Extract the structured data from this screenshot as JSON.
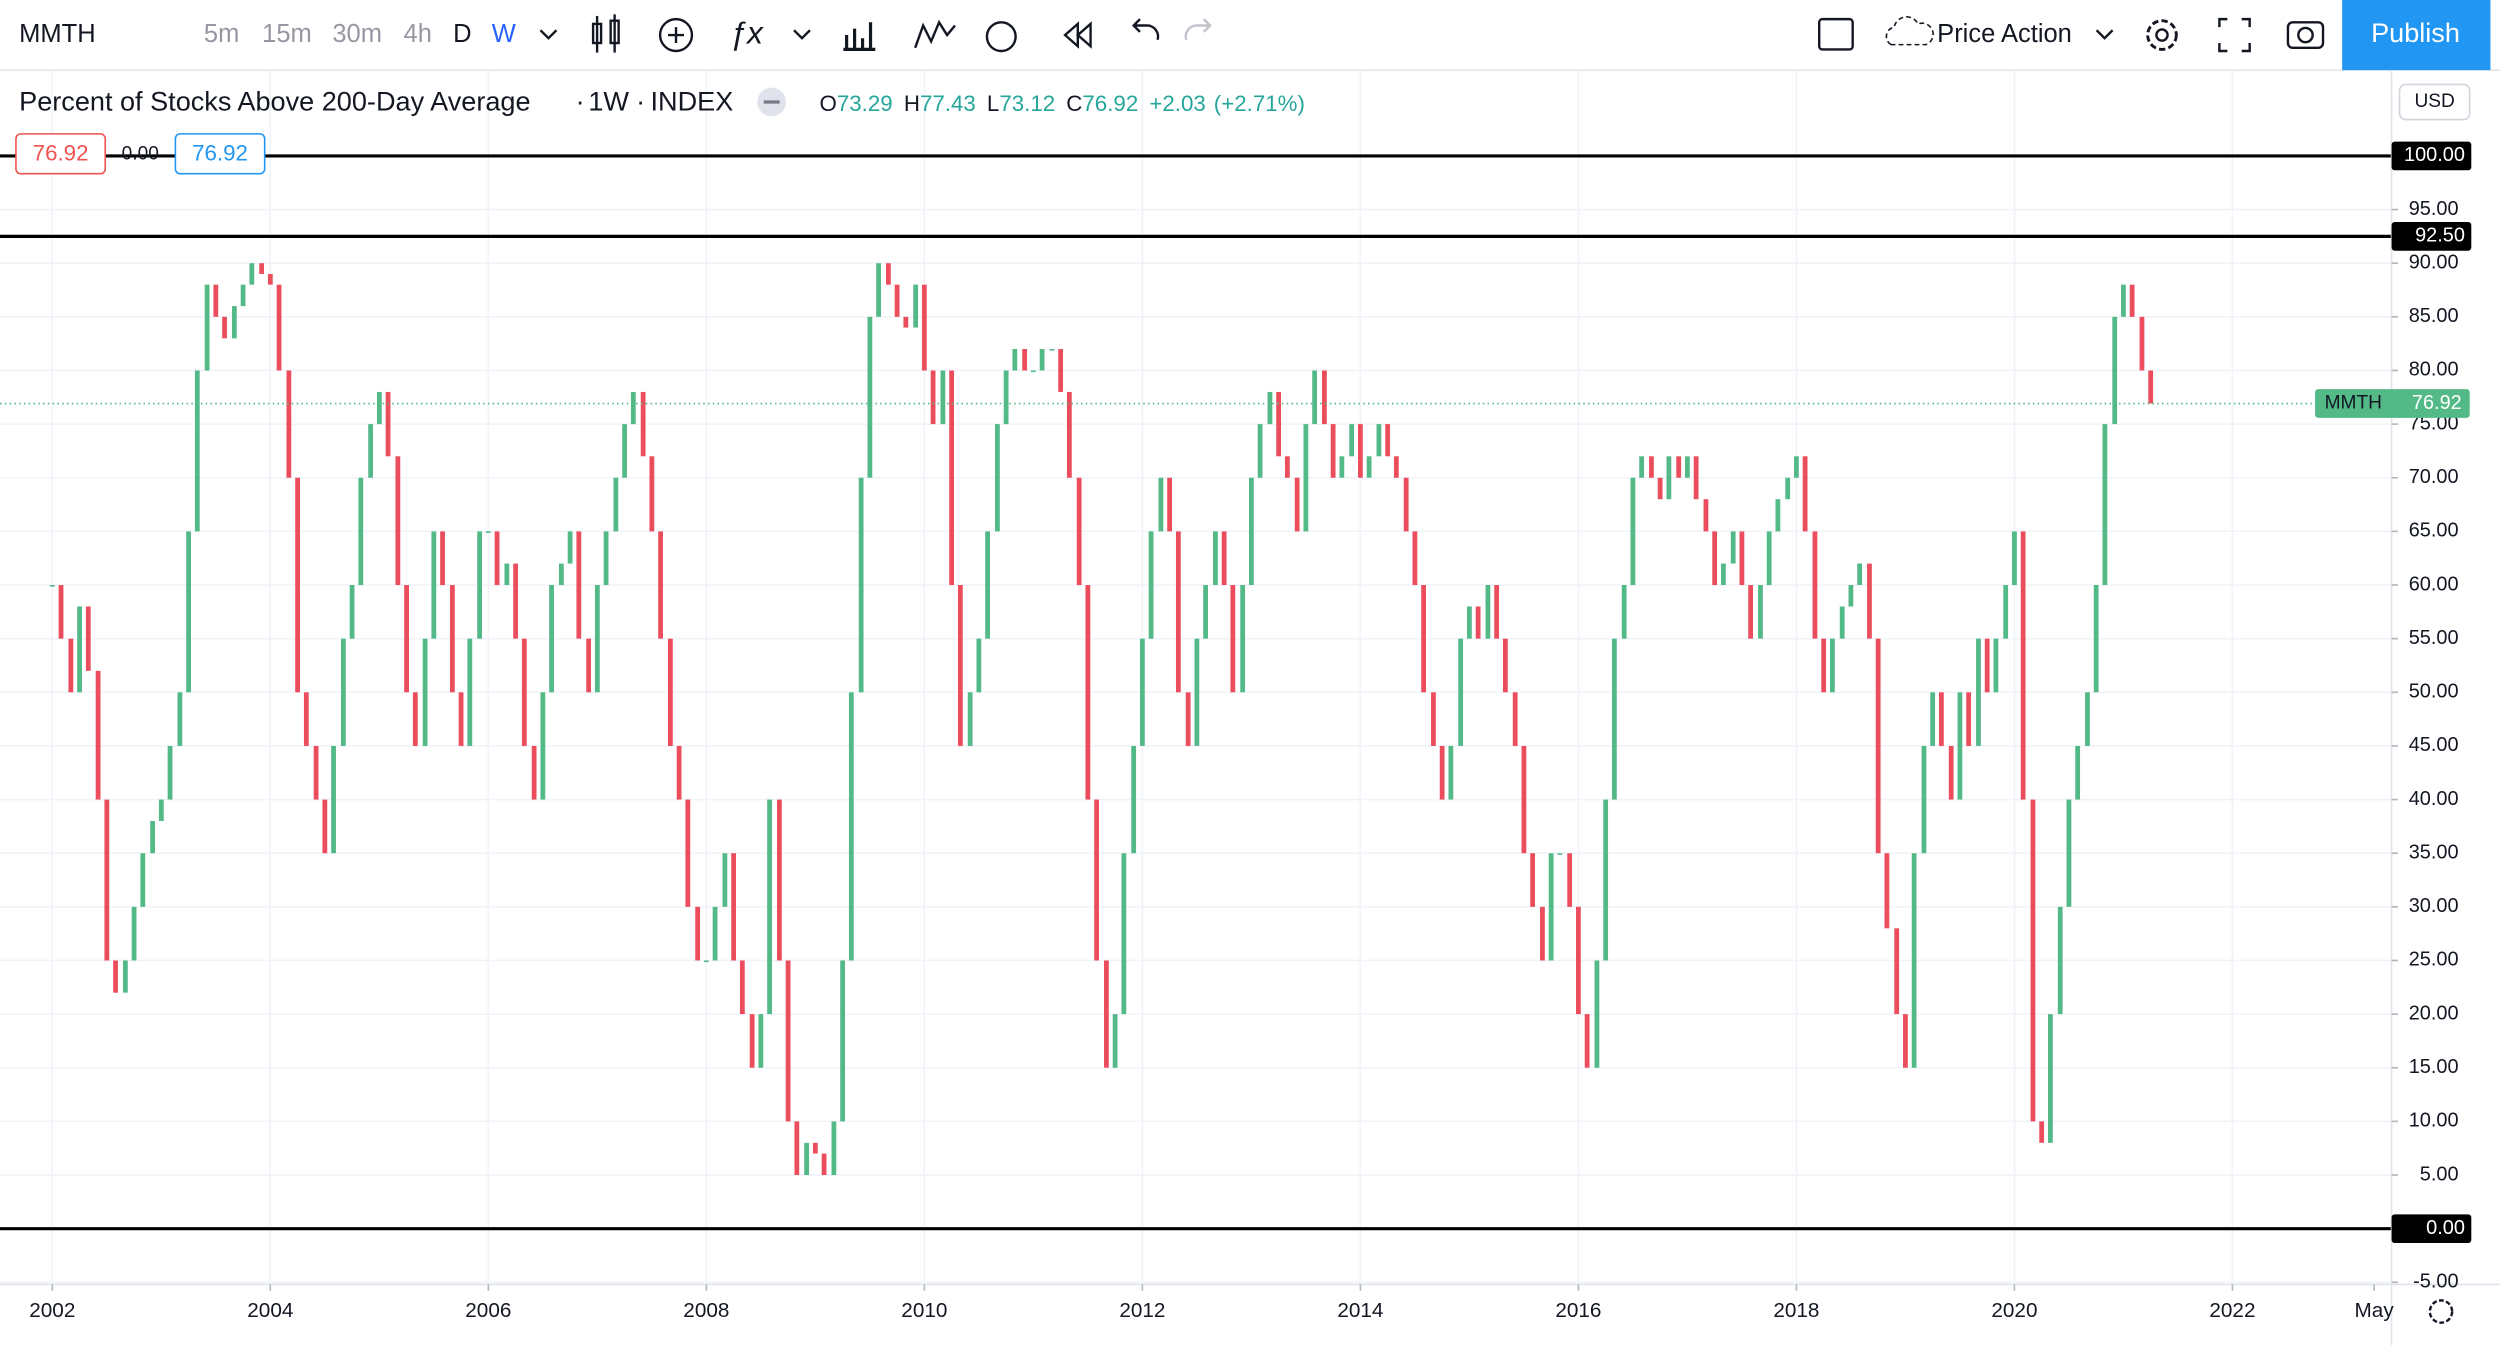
{
  "toolbar": {
    "symbol": "MMTH",
    "intervals": [
      "5m",
      "15m",
      "30m",
      "4h",
      "D",
      "W"
    ],
    "template": "Price Action",
    "publish": "Publish"
  },
  "legend": {
    "title": "Percent of Stocks Above 200-Day Average",
    "interval": "1W",
    "exchange": "INDEX",
    "ohlc": [
      {
        "label": "O",
        "value": "73.29"
      },
      {
        "label": "H",
        "value": "77.43"
      },
      {
        "label": "L",
        "value": "73.12"
      },
      {
        "label": "C",
        "value": "76.92"
      }
    ],
    "change": "+2.03",
    "change_pct": "(+2.71%)",
    "bid": "76.92",
    "spread": "0.00",
    "ask": "76.92"
  },
  "currency": "USD",
  "chart_data": {
    "type": "candlestick",
    "x": [
      2002,
      2002.08,
      2002.17,
      2002.25,
      2002.33,
      2002.42,
      2002.5,
      2002.58,
      2002.67,
      2002.75,
      2002.83,
      2002.92,
      2003,
      2003.08,
      2003.17,
      2003.25,
      2003.33,
      2003.42,
      2003.5,
      2003.58,
      2003.67,
      2003.75,
      2003.83,
      2003.92,
      2004,
      2004.08,
      2004.17,
      2004.25,
      2004.33,
      2004.42,
      2004.5,
      2004.58,
      2004.67,
      2004.75,
      2004.83,
      2004.92,
      2005,
      2005.08,
      2005.17,
      2005.25,
      2005.33,
      2005.42,
      2005.5,
      2005.58,
      2005.67,
      2005.75,
      2005.83,
      2005.92,
      2006,
      2006.08,
      2006.17,
      2006.25,
      2006.33,
      2006.42,
      2006.5,
      2006.58,
      2006.67,
      2006.75,
      2006.83,
      2006.92,
      2007,
      2007.08,
      2007.17,
      2007.25,
      2007.33,
      2007.42,
      2007.5,
      2007.58,
      2007.67,
      2007.75,
      2007.83,
      2007.92,
      2008,
      2008.08,
      2008.17,
      2008.25,
      2008.33,
      2008.42,
      2008.5,
      2008.58,
      2008.67,
      2008.75,
      2008.83,
      2008.92,
      2009,
      2009.08,
      2009.17,
      2009.25,
      2009.33,
      2009.42,
      2009.5,
      2009.58,
      2009.67,
      2009.75,
      2009.83,
      2009.92,
      2010,
      2010.08,
      2010.17,
      2010.25,
      2010.33,
      2010.42,
      2010.5,
      2010.58,
      2010.67,
      2010.75,
      2010.83,
      2010.92,
      2011,
      2011.08,
      2011.17,
      2011.25,
      2011.33,
      2011.42,
      2011.5,
      2011.58,
      2011.67,
      2011.75,
      2011.83,
      2011.92,
      2012,
      2012.08,
      2012.17,
      2012.25,
      2012.33,
      2012.42,
      2012.5,
      2012.58,
      2012.67,
      2012.75,
      2012.83,
      2012.92,
      2013,
      2013.08,
      2013.17,
      2013.25,
      2013.33,
      2013.42,
      2013.5,
      2013.58,
      2013.67,
      2013.75,
      2013.83,
      2013.92,
      2014,
      2014.08,
      2014.17,
      2014.25,
      2014.33,
      2014.42,
      2014.5,
      2014.58,
      2014.67,
      2014.75,
      2014.83,
      2014.92,
      2015,
      2015.08,
      2015.17,
      2015.25,
      2015.33,
      2015.42,
      2015.5,
      2015.58,
      2015.67,
      2015.75,
      2015.83,
      2015.92,
      2016,
      2016.08,
      2016.17,
      2016.25,
      2016.33,
      2016.42,
      2016.5,
      2016.58,
      2016.67,
      2016.75,
      2016.83,
      2016.92,
      2017,
      2017.08,
      2017.17,
      2017.25,
      2017.33,
      2017.42,
      2017.5,
      2017.58,
      2017.67,
      2017.75,
      2017.83,
      2017.92,
      2018,
      2018.08,
      2018.17,
      2018.25,
      2018.33,
      2018.42,
      2018.5,
      2018.58,
      2018.67,
      2018.75,
      2018.83,
      2018.92,
      2019,
      2019.08,
      2019.17,
      2019.25,
      2019.33,
      2019.42,
      2019.5,
      2019.58,
      2019.67,
      2019.75,
      2019.83,
      2019.92,
      2020,
      2020.08,
      2020.17,
      2020.25,
      2020.33,
      2020.42,
      2020.5,
      2020.58,
      2020.67,
      2020.75,
      2020.83,
      2020.92,
      2021,
      2021.08,
      2021.17,
      2021.25
    ],
    "values": [
      60,
      55,
      50,
      58,
      52,
      40,
      25,
      22,
      25,
      30,
      35,
      38,
      40,
      45,
      50,
      65,
      80,
      88,
      85,
      83,
      86,
      88,
      90,
      89,
      88,
      80,
      70,
      50,
      45,
      40,
      35,
      45,
      55,
      60,
      70,
      75,
      78,
      72,
      60,
      50,
      45,
      55,
      65,
      60,
      50,
      45,
      55,
      65,
      65,
      60,
      62,
      55,
      45,
      40,
      50,
      60,
      62,
      65,
      55,
      50,
      60,
      65,
      70,
      75,
      78,
      72,
      65,
      55,
      45,
      40,
      30,
      25,
      25,
      30,
      35,
      25,
      20,
      15,
      20,
      40,
      25,
      10,
      5,
      8,
      7,
      5,
      10,
      25,
      50,
      70,
      85,
      90,
      88,
      85,
      84,
      88,
      80,
      75,
      80,
      60,
      45,
      50,
      55,
      65,
      75,
      80,
      82,
      80,
      80,
      82,
      82,
      78,
      70,
      60,
      40,
      25,
      15,
      20,
      35,
      45,
      55,
      65,
      70,
      65,
      50,
      45,
      55,
      60,
      65,
      60,
      50,
      60,
      70,
      75,
      78,
      72,
      70,
      65,
      75,
      80,
      75,
      70,
      72,
      75,
      70,
      72,
      75,
      72,
      70,
      65,
      60,
      50,
      45,
      40,
      45,
      55,
      58,
      55,
      60,
      55,
      50,
      45,
      35,
      30,
      25,
      35,
      35,
      30,
      20,
      15,
      25,
      40,
      55,
      60,
      70,
      72,
      70,
      68,
      72,
      70,
      72,
      68,
      65,
      60,
      62,
      65,
      60,
      55,
      60,
      65,
      68,
      70,
      72,
      65,
      55,
      50,
      55,
      58,
      60,
      62,
      55,
      35,
      28,
      20,
      15,
      35,
      45,
      50,
      45,
      40,
      50,
      45,
      55,
      50,
      55,
      60,
      65,
      40,
      10,
      8,
      20,
      30,
      40,
      45,
      50,
      60,
      75,
      85,
      88,
      85,
      80,
      76.92
    ],
    "up_color": "#53b987",
    "down_color": "#eb4d5c",
    "xlim": [
      2001.52,
      2023.46
    ],
    "xticks": [
      2002,
      2004,
      2006,
      2008,
      2010,
      2012,
      2014,
      2016,
      2018,
      2020,
      2022,
      {
        "value": 2023.3,
        "label": "May"
      }
    ],
    "ylim": [
      -5.2,
      108
    ],
    "yticks": [
      {
        "value": -5,
        "label": "-5.00"
      },
      {
        "value": 0,
        "label": "0.00"
      },
      {
        "value": 5,
        "label": "5.00"
      },
      {
        "value": 10,
        "label": "10.00"
      },
      {
        "value": 15,
        "label": "15.00"
      },
      {
        "value": 20,
        "label": "20.00"
      },
      {
        "value": 25,
        "label": "25.00"
      },
      {
        "value": 30,
        "label": "30.00"
      },
      {
        "value": 35,
        "label": "35.00"
      },
      {
        "value": 40,
        "label": "40.00"
      },
      {
        "value": 45,
        "label": "45.00"
      },
      {
        "value": 50,
        "label": "50.00"
      },
      {
        "value": 55,
        "label": "55.00"
      },
      {
        "value": 60,
        "label": "60.00"
      },
      {
        "value": 65,
        "label": "65.00"
      },
      {
        "value": 70,
        "label": "70.00"
      },
      {
        "value": 75,
        "label": "75.00"
      },
      {
        "value": 80,
        "label": "80.00"
      },
      {
        "value": 85,
        "label": "85.00"
      },
      {
        "value": 90,
        "label": "90.00"
      },
      {
        "value": 95,
        "label": "95.00"
      }
    ],
    "grid": true,
    "levels": [
      {
        "value": 100,
        "label": "100.00"
      },
      {
        "value": 92.5,
        "label": "92.50"
      },
      {
        "value": 0,
        "label": "0.00"
      }
    ],
    "last": {
      "value": 76.92,
      "label": "76.92"
    }
  }
}
